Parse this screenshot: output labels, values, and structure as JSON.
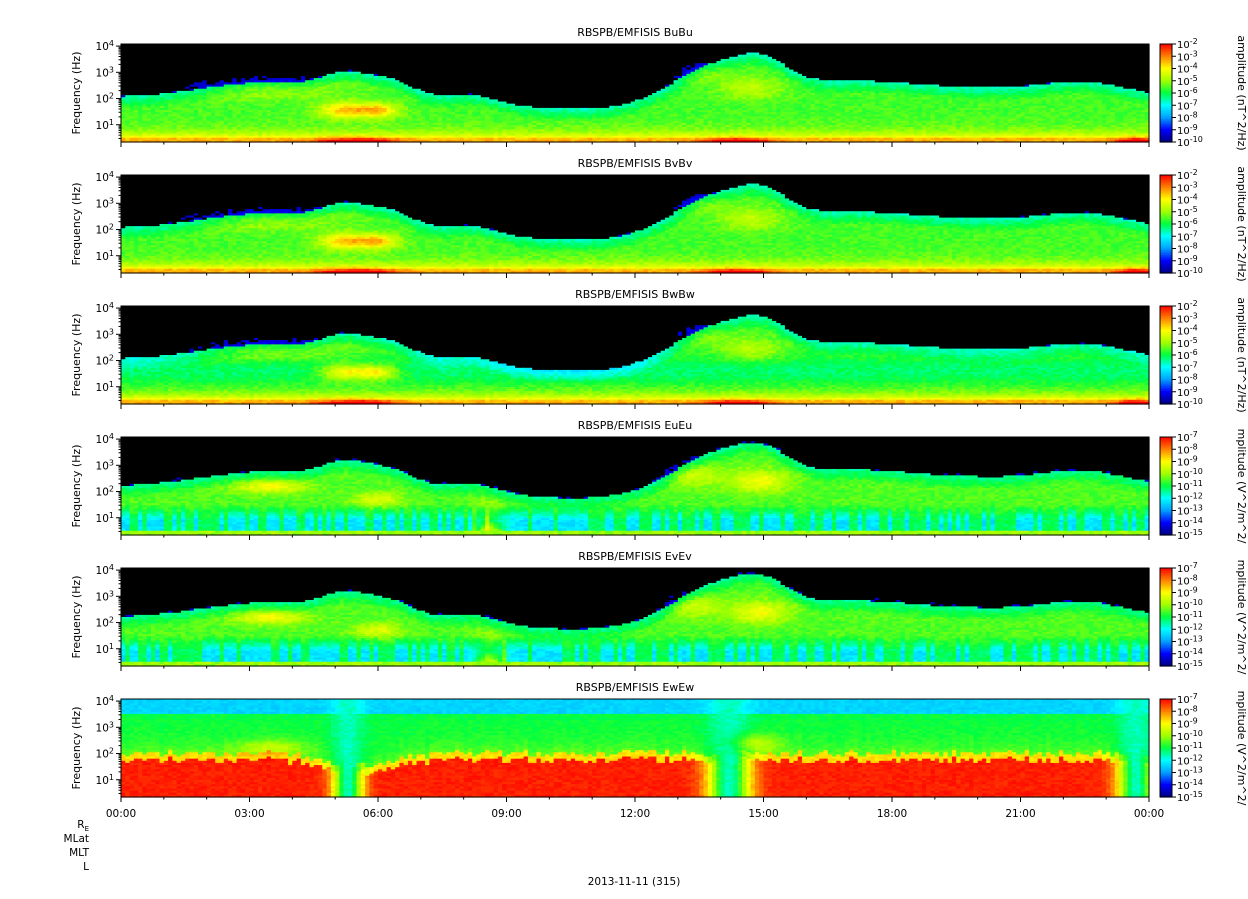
{
  "chart_data": {
    "type": "heatmap",
    "date_label": "2013-11-11 (315)",
    "x_ticks": [
      "00:00",
      "03:00",
      "06:00",
      "09:00",
      "12:00",
      "15:00",
      "18:00",
      "21:00",
      "00:00"
    ],
    "xlim_hours": [
      0,
      24
    ],
    "ephemeris_labels": [
      "R",
      "MLat",
      "MLT",
      "L"
    ],
    "ephemeris_subscript": "E",
    "y_axis": {
      "label": "Frequency (Hz)",
      "scale": "log",
      "ylim": [
        2.2,
        12000
      ],
      "ticks": [
        10,
        100,
        1000,
        10000
      ]
    },
    "colormap": [
      "#000080",
      "#0000ff",
      "#00a0ff",
      "#00ffff",
      "#00ff40",
      "#a0ff00",
      "#ffff00",
      "#ff8000",
      "#ff0000"
    ],
    "panels": [
      {
        "title": "RBSPB/EMFISIS  BuBu",
        "colorbar_label": "amplitude (nT^2/Hz)",
        "exp_range": [
          -10,
          -2
        ],
        "kind": "B"
      },
      {
        "title": "RBSPB/EMFISIS  BvBv",
        "colorbar_label": "amplitude (nT^2/Hz)",
        "exp_range": [
          -10,
          -2
        ],
        "kind": "B"
      },
      {
        "title": "RBSPB/EMFISIS  BwBw",
        "colorbar_label": "amplitude (nT^2/Hz)",
        "exp_range": [
          -10,
          -2
        ],
        "kind": "B"
      },
      {
        "title": "RBSPB/EMFISIS  EuEu",
        "colorbar_label": "mplitude (V^2/m^2/",
        "exp_range": [
          -15,
          -7
        ],
        "kind": "E"
      },
      {
        "title": "RBSPB/EMFISIS  EvEv",
        "colorbar_label": "mplitude (V^2/m^2/",
        "exp_range": [
          -15,
          -7
        ],
        "kind": "E"
      },
      {
        "title": "RBSPB/EMFISIS  EwEw",
        "colorbar_label": "mplitude (V^2/m^2/",
        "exp_range": [
          -15,
          -7
        ],
        "kind": "Ew"
      }
    ]
  }
}
